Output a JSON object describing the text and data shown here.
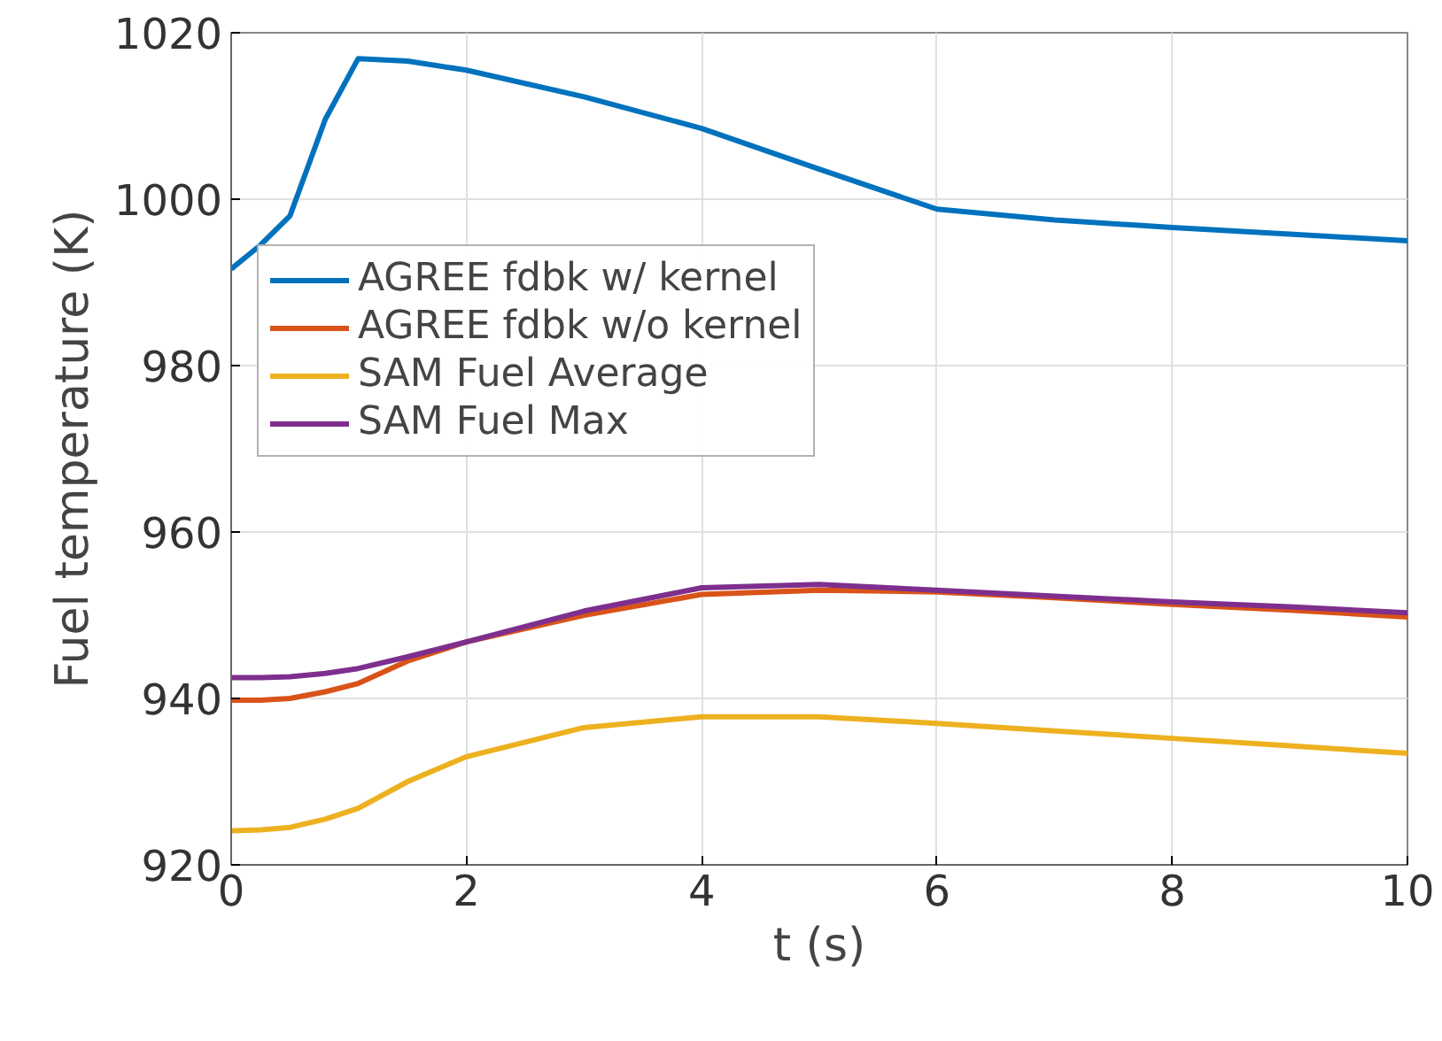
{
  "chart_data": {
    "type": "line",
    "xlabel": "t (s)",
    "ylabel": "Fuel temperature (K)",
    "xlim": [
      0,
      10
    ],
    "ylim": [
      920,
      1020
    ],
    "xticks": [
      0,
      2,
      4,
      6,
      8,
      10
    ],
    "yticks": [
      920,
      940,
      960,
      980,
      1000,
      1020
    ],
    "grid": true,
    "legend": "left",
    "line_style": "solid",
    "marker": "none",
    "x": [
      0,
      0.25,
      0.5,
      0.8,
      1.08,
      1.5,
      2,
      3,
      4,
      5,
      6,
      7,
      8,
      9,
      10
    ],
    "series": [
      {
        "name": "AGREE fdbk w/ kernel",
        "color": "#0072bd",
        "values": [
          991.6,
          994.5,
          998,
          1009.6,
          1016.9,
          1016.6,
          1015.5,
          1012.3,
          1008.5,
          1003.6,
          998.8,
          997.5,
          996.6,
          995.8,
          995.0
        ]
      },
      {
        "name": "AGREE fdbk w/o kernel",
        "color": "#d95319",
        "values": [
          939.8,
          939.8,
          940,
          940.8,
          941.8,
          944.5,
          946.8,
          950,
          952.5,
          953,
          952.8,
          952.1,
          951.3,
          950.6,
          949.8
        ]
      },
      {
        "name": "SAM Fuel Average",
        "color": "#edb120",
        "values": [
          924.1,
          924.2,
          924.5,
          925.5,
          926.8,
          930,
          933,
          936.5,
          937.8,
          937.8,
          937,
          936.1,
          935.2,
          934.3,
          933.4
        ]
      },
      {
        "name": "SAM Fuel Max",
        "color": "#7e2f8e",
        "values": [
          942.5,
          942.5,
          942.6,
          943,
          943.6,
          945,
          946.8,
          950.5,
          953.3,
          953.7,
          953,
          952.3,
          951.6,
          951,
          950.3
        ]
      }
    ]
  }
}
